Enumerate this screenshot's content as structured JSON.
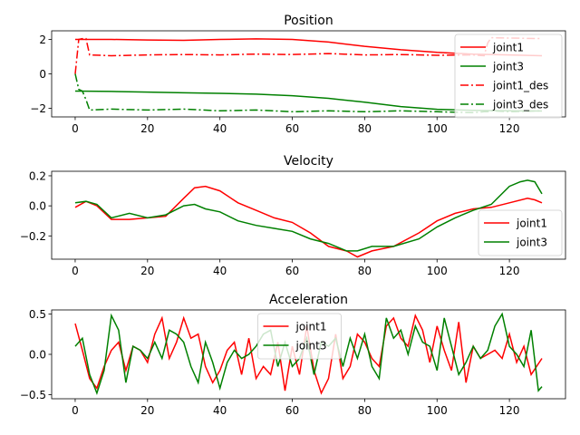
{
  "chart_data": [
    {
      "type": "line",
      "title": "Position",
      "xlim": [
        -6.5,
        135.5
      ],
      "ylim": [
        -2.5,
        2.5
      ],
      "xticks": [
        0,
        20,
        40,
        60,
        80,
        100,
        120
      ],
      "yticks": [
        -2,
        0,
        2
      ],
      "legend_position": "upper-right",
      "series": [
        {
          "name": "joint1",
          "color": "#ff0000",
          "style": "solid",
          "x": [
            0,
            10,
            20,
            30,
            40,
            50,
            60,
            70,
            80,
            90,
            100,
            110,
            120,
            129
          ],
          "y": [
            2.0,
            2.0,
            1.97,
            1.95,
            2.0,
            2.03,
            2.0,
            1.85,
            1.6,
            1.4,
            1.25,
            1.15,
            1.1,
            1.05
          ]
        },
        {
          "name": "joint3",
          "color": "#008000",
          "style": "solid",
          "x": [
            0,
            10,
            20,
            30,
            40,
            50,
            60,
            70,
            80,
            90,
            100,
            110,
            120,
            129
          ],
          "y": [
            -1.0,
            -1.02,
            -1.06,
            -1.1,
            -1.13,
            -1.18,
            -1.27,
            -1.42,
            -1.65,
            -1.9,
            -2.06,
            -2.12,
            -2.15,
            -2.16
          ]
        },
        {
          "name": "joint1_des",
          "color": "#ff0000",
          "style": "dashdot",
          "x": [
            0,
            1,
            2,
            3,
            4,
            10,
            20,
            30,
            40,
            50,
            60,
            70,
            80,
            90,
            100,
            110,
            113,
            114,
            115,
            120,
            129
          ],
          "y": [
            0.0,
            2.0,
            2.05,
            2.05,
            1.1,
            1.05,
            1.1,
            1.12,
            1.1,
            1.15,
            1.12,
            1.18,
            1.1,
            1.12,
            1.08,
            1.1,
            1.05,
            1.8,
            2.1,
            2.08,
            2.05
          ]
        },
        {
          "name": "joint3_des",
          "color": "#008000",
          "style": "dashdot",
          "x": [
            0,
            1,
            2,
            3,
            4,
            10,
            20,
            30,
            40,
            50,
            60,
            70,
            80,
            90,
            100,
            110,
            113,
            114,
            115,
            120,
            129
          ],
          "y": [
            0.0,
            -0.9,
            -1.0,
            -1.5,
            -2.1,
            -2.05,
            -2.1,
            -2.05,
            -2.15,
            -2.1,
            -2.2,
            -2.15,
            -2.2,
            -2.15,
            -2.2,
            -2.25,
            -2.2,
            -2.2,
            -2.15,
            -2.2,
            -2.15
          ]
        }
      ]
    },
    {
      "type": "line",
      "title": "Velocity",
      "xlim": [
        -6.5,
        135.5
      ],
      "ylim": [
        -0.355,
        0.23
      ],
      "xticks": [
        0,
        20,
        40,
        60,
        80,
        100,
        120
      ],
      "yticks": [
        -0.2,
        0.0,
        0.2
      ],
      "legend_position": "lower-right",
      "series": [
        {
          "name": "joint1",
          "color": "#ff0000",
          "style": "solid",
          "x": [
            0,
            3,
            6,
            10,
            15,
            20,
            25,
            30,
            33,
            36,
            40,
            45,
            50,
            55,
            60,
            65,
            70,
            75,
            78,
            82,
            88,
            95,
            100,
            105,
            110,
            115,
            120,
            125,
            127,
            129
          ],
          "y": [
            -0.01,
            0.03,
            0.0,
            -0.09,
            -0.09,
            -0.08,
            -0.07,
            0.05,
            0.12,
            0.13,
            0.1,
            0.02,
            -0.03,
            -0.08,
            -0.11,
            -0.18,
            -0.27,
            -0.3,
            -0.34,
            -0.3,
            -0.27,
            -0.18,
            -0.1,
            -0.05,
            -0.02,
            -0.01,
            0.02,
            0.05,
            0.04,
            0.02
          ]
        },
        {
          "name": "joint3",
          "color": "#008000",
          "style": "solid",
          "x": [
            0,
            3,
            6,
            10,
            15,
            20,
            25,
            30,
            33,
            36,
            40,
            45,
            50,
            55,
            60,
            65,
            70,
            75,
            78,
            82,
            88,
            95,
            100,
            105,
            110,
            115,
            120,
            123,
            125,
            127,
            129
          ],
          "y": [
            0.02,
            0.03,
            0.01,
            -0.08,
            -0.05,
            -0.08,
            -0.06,
            0.0,
            0.01,
            -0.02,
            -0.04,
            -0.1,
            -0.13,
            -0.15,
            -0.17,
            -0.22,
            -0.25,
            -0.3,
            -0.3,
            -0.27,
            -0.27,
            -0.22,
            -0.14,
            -0.08,
            -0.03,
            0.01,
            0.13,
            0.16,
            0.17,
            0.16,
            0.08
          ]
        }
      ]
    },
    {
      "type": "line",
      "title": "Acceleration",
      "xlim": [
        -6.5,
        135.5
      ],
      "ylim": [
        -0.55,
        0.55
      ],
      "xticks": [
        0,
        20,
        40,
        60,
        80,
        100,
        120
      ],
      "yticks": [
        -0.5,
        0.0,
        0.5
      ],
      "legend_position": "upper-center",
      "series": [
        {
          "name": "joint1",
          "color": "#ff0000",
          "style": "solid",
          "x": [
            0,
            2,
            4,
            6,
            8,
            10,
            12,
            14,
            16,
            18,
            20,
            22,
            24,
            26,
            28,
            30,
            32,
            34,
            36,
            38,
            40,
            42,
            44,
            46,
            48,
            50,
            52,
            54,
            56,
            58,
            60,
            62,
            64,
            66,
            68,
            70,
            72,
            74,
            76,
            78,
            80,
            82,
            84,
            86,
            88,
            90,
            92,
            94,
            96,
            98,
            100,
            102,
            104,
            106,
            108,
            110,
            112,
            114,
            116,
            118,
            120,
            122,
            124,
            126,
            129
          ],
          "y": [
            0.38,
            0.05,
            -0.3,
            -0.42,
            -0.15,
            0.05,
            0.15,
            -0.2,
            0.1,
            0.05,
            -0.1,
            0.25,
            0.45,
            -0.05,
            0.15,
            0.45,
            0.2,
            0.25,
            -0.15,
            -0.35,
            -0.2,
            0.05,
            0.15,
            -0.25,
            0.2,
            -0.3,
            -0.15,
            -0.25,
            0.15,
            -0.45,
            0.1,
            -0.25,
            0.35,
            -0.2,
            -0.48,
            -0.3,
            0.25,
            -0.3,
            -0.15,
            0.25,
            0.15,
            -0.05,
            -0.15,
            0.35,
            0.45,
            0.2,
            0.1,
            0.48,
            0.3,
            -0.1,
            0.35,
            0.05,
            -0.2,
            0.4,
            -0.35,
            0.1,
            -0.05,
            0.0,
            0.05,
            -0.05,
            0.25,
            -0.1,
            0.1,
            -0.25,
            -0.05
          ]
        },
        {
          "name": "joint3",
          "color": "#008000",
          "style": "solid",
          "x": [
            0,
            2,
            4,
            6,
            8,
            10,
            12,
            14,
            16,
            18,
            20,
            22,
            24,
            26,
            28,
            30,
            32,
            34,
            36,
            38,
            40,
            42,
            44,
            46,
            48,
            50,
            52,
            54,
            56,
            58,
            60,
            62,
            64,
            66,
            68,
            70,
            72,
            74,
            76,
            78,
            80,
            82,
            84,
            86,
            88,
            90,
            92,
            94,
            96,
            98,
            100,
            102,
            104,
            106,
            108,
            110,
            112,
            114,
            116,
            118,
            120,
            122,
            124,
            126,
            128,
            129
          ],
          "y": [
            0.1,
            0.2,
            -0.25,
            -0.48,
            -0.2,
            0.48,
            0.3,
            -0.35,
            0.1,
            0.05,
            -0.05,
            0.15,
            -0.05,
            0.3,
            0.25,
            0.15,
            -0.15,
            -0.35,
            0.15,
            -0.1,
            -0.42,
            -0.1,
            0.05,
            -0.05,
            0.0,
            0.1,
            0.25,
            0.3,
            -0.15,
            0.15,
            -0.15,
            -0.05,
            0.2,
            -0.25,
            0.15,
            0.1,
            0.2,
            -0.15,
            0.2,
            -0.05,
            0.25,
            -0.15,
            -0.3,
            0.45,
            0.2,
            0.3,
            0.0,
            0.35,
            0.15,
            0.1,
            -0.2,
            0.45,
            0.1,
            -0.25,
            -0.1,
            0.1,
            -0.05,
            0.05,
            0.35,
            0.5,
            0.1,
            0.0,
            -0.15,
            0.3,
            -0.45,
            -0.4
          ]
        }
      ]
    }
  ]
}
